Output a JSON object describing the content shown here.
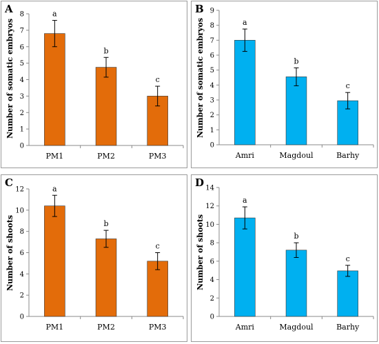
{
  "chart_data": [
    {
      "panel": "A",
      "type": "bar",
      "ylabel": "Number of somatic embryos",
      "ylim": [
        0,
        8
      ],
      "yticks": [
        0,
        1,
        2,
        3,
        4,
        5,
        6,
        7,
        8
      ],
      "categories": [
        "PM1",
        "PM2",
        "PM3"
      ],
      "values": [
        6.8,
        4.75,
        3.0
      ],
      "errors": [
        0.8,
        0.6,
        0.6
      ],
      "letters": [
        "a",
        "b",
        "c"
      ],
      "color": "#e36c0a"
    },
    {
      "panel": "B",
      "type": "bar",
      "ylabel": "Number of somatic embryos",
      "ylim": [
        0,
        9
      ],
      "yticks": [
        0,
        1,
        2,
        3,
        4,
        5,
        6,
        7,
        8,
        9
      ],
      "categories": [
        "Amri",
        "Magdoul",
        "Barhy"
      ],
      "values": [
        7.0,
        4.55,
        2.95
      ],
      "errors": [
        0.75,
        0.6,
        0.55
      ],
      "letters": [
        "a",
        "b",
        "c"
      ],
      "color": "#00b0f0"
    },
    {
      "panel": "C",
      "type": "bar",
      "ylabel": "Number of shoots",
      "ylim": [
        0,
        12
      ],
      "yticks": [
        0,
        2,
        4,
        6,
        8,
        10,
        12
      ],
      "categories": [
        "PM1",
        "PM2",
        "PM3"
      ],
      "values": [
        10.4,
        7.3,
        5.2
      ],
      "errors": [
        1.0,
        0.8,
        0.8
      ],
      "letters": [
        "a",
        "b",
        "c"
      ],
      "color": "#e36c0a"
    },
    {
      "panel": "D",
      "type": "bar",
      "ylabel": "Number of shoots",
      "ylim": [
        0,
        14
      ],
      "yticks": [
        0,
        2,
        4,
        6,
        8,
        10,
        12,
        14
      ],
      "categories": [
        "Amri",
        "Magdoul",
        "Barhy"
      ],
      "values": [
        10.7,
        7.2,
        4.95
      ],
      "errors": [
        1.2,
        0.8,
        0.6
      ],
      "letters": [
        "a",
        "b",
        "c"
      ],
      "color": "#00b0f0"
    }
  ]
}
